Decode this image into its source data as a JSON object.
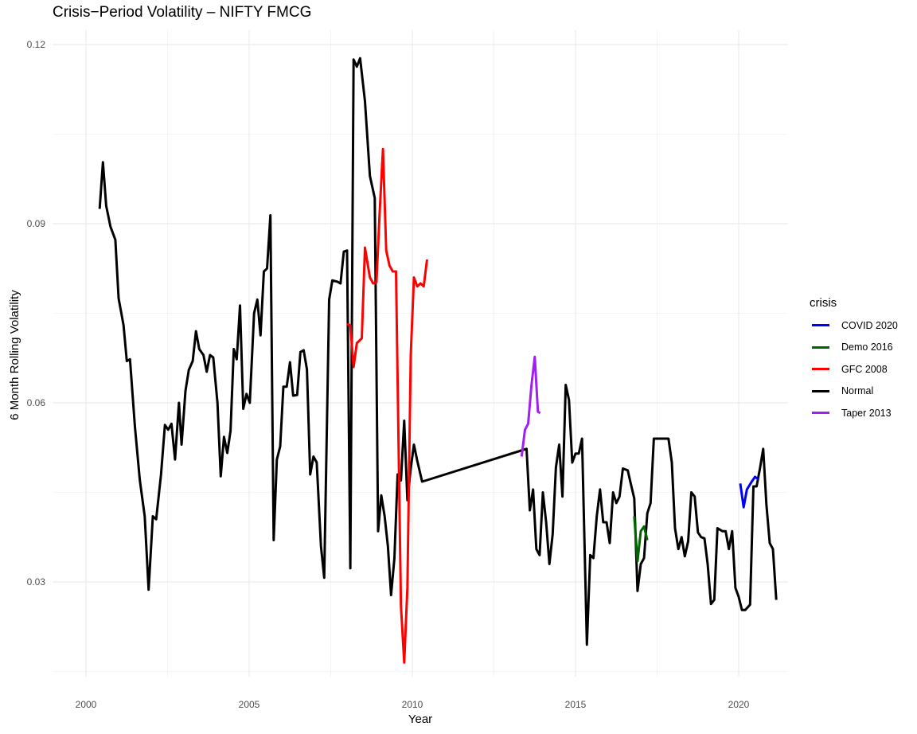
{
  "chart_data": {
    "type": "line",
    "title": "Crisis−Period Volatility – NIFTY FMCG",
    "xlabel": "Year",
    "ylabel": "6 Month Rolling Volatility",
    "xlim": [
      1999.0,
      2021.6
    ],
    "ylim": [
      0.0135,
      0.1225
    ],
    "x_ticks": [
      2000,
      2005,
      2010,
      2015,
      2020
    ],
    "x_tick_labels": [
      "2000",
      "2005",
      "2010",
      "2015",
      "2020"
    ],
    "y_ticks": [
      0.03,
      0.06,
      0.09,
      0.12
    ],
    "y_tick_labels": [
      "0.03",
      "0.06",
      "0.09",
      "0.12"
    ],
    "grid": true,
    "legend_title": "crisis",
    "legend_position": "right",
    "series": [
      {
        "name": "COVID 2020",
        "color": "#0000ff",
        "points": [
          [
            2020.05,
            0.0465
          ],
          [
            2020.15,
            0.0425
          ],
          [
            2020.25,
            0.0455
          ],
          [
            2020.4,
            0.0468
          ],
          [
            2020.5,
            0.0476
          ],
          [
            2020.6,
            0.0472
          ]
        ]
      },
      {
        "name": "Demo 2016",
        "color": "#006400",
        "points": [
          [
            2016.8,
            0.041
          ],
          [
            2016.9,
            0.0335
          ],
          [
            2017.0,
            0.0385
          ],
          [
            2017.1,
            0.0393
          ],
          [
            2017.2,
            0.037
          ]
        ]
      },
      {
        "name": "GFC 2008",
        "color": "#ff0000",
        "points": [
          [
            2008.0,
            0.0732
          ],
          [
            2008.1,
            0.073
          ],
          [
            2008.2,
            0.066
          ],
          [
            2008.3,
            0.07
          ],
          [
            2008.45,
            0.0708
          ],
          [
            2008.55,
            0.086
          ],
          [
            2008.7,
            0.081
          ],
          [
            2008.8,
            0.08
          ],
          [
            2008.9,
            0.0802
          ],
          [
            2009.0,
            0.092
          ],
          [
            2009.1,
            0.1025
          ],
          [
            2009.2,
            0.0855
          ],
          [
            2009.3,
            0.083
          ],
          [
            2009.4,
            0.082
          ],
          [
            2009.5,
            0.082
          ],
          [
            2009.65,
            0.026
          ],
          [
            2009.75,
            0.0165
          ],
          [
            2009.85,
            0.029
          ],
          [
            2009.95,
            0.068
          ],
          [
            2010.05,
            0.081
          ],
          [
            2010.15,
            0.0795
          ],
          [
            2010.25,
            0.08
          ],
          [
            2010.35,
            0.0795
          ],
          [
            2010.45,
            0.084
          ]
        ]
      },
      {
        "name": "Normal",
        "color": "#000000",
        "points": [
          [
            2000.42,
            0.0925
          ],
          [
            2000.52,
            0.1003
          ],
          [
            2000.62,
            0.093
          ],
          [
            2000.75,
            0.0895
          ],
          [
            2000.9,
            0.0873
          ],
          [
            2001.0,
            0.0775
          ],
          [
            2001.15,
            0.073
          ],
          [
            2001.25,
            0.067
          ],
          [
            2001.35,
            0.0673
          ],
          [
            2001.5,
            0.056
          ],
          [
            2001.65,
            0.047
          ],
          [
            2001.8,
            0.041
          ],
          [
            2001.92,
            0.0287
          ],
          [
            2002.05,
            0.041
          ],
          [
            2002.15,
            0.0405
          ],
          [
            2002.3,
            0.048
          ],
          [
            2002.42,
            0.0563
          ],
          [
            2002.52,
            0.0555
          ],
          [
            2002.62,
            0.0565
          ],
          [
            2002.73,
            0.0505
          ],
          [
            2002.85,
            0.06
          ],
          [
            2002.93,
            0.053
          ],
          [
            2003.05,
            0.062
          ],
          [
            2003.15,
            0.0655
          ],
          [
            2003.27,
            0.067
          ],
          [
            2003.37,
            0.072
          ],
          [
            2003.47,
            0.069
          ],
          [
            2003.6,
            0.068
          ],
          [
            2003.7,
            0.0652
          ],
          [
            2003.8,
            0.068
          ],
          [
            2003.9,
            0.0676
          ],
          [
            2004.03,
            0.06
          ],
          [
            2004.13,
            0.0477
          ],
          [
            2004.23,
            0.0543
          ],
          [
            2004.33,
            0.0516
          ],
          [
            2004.43,
            0.0553
          ],
          [
            2004.53,
            0.069
          ],
          [
            2004.62,
            0.0673
          ],
          [
            2004.72,
            0.0763
          ],
          [
            2004.82,
            0.059
          ],
          [
            2004.92,
            0.0615
          ],
          [
            2005.02,
            0.06
          ],
          [
            2005.15,
            0.075
          ],
          [
            2005.25,
            0.0773
          ],
          [
            2005.35,
            0.0713
          ],
          [
            2005.45,
            0.082
          ],
          [
            2005.55,
            0.0825
          ],
          [
            2005.65,
            0.0914
          ],
          [
            2005.75,
            0.037
          ],
          [
            2005.85,
            0.0505
          ],
          [
            2005.95,
            0.0527
          ],
          [
            2006.05,
            0.0627
          ],
          [
            2006.15,
            0.0627
          ],
          [
            2006.25,
            0.0668
          ],
          [
            2006.35,
            0.0612
          ],
          [
            2006.47,
            0.0613
          ],
          [
            2006.57,
            0.0685
          ],
          [
            2006.67,
            0.0688
          ],
          [
            2006.77,
            0.0656
          ],
          [
            2006.87,
            0.048
          ],
          [
            2006.97,
            0.051
          ],
          [
            2007.07,
            0.05
          ],
          [
            2007.2,
            0.036
          ],
          [
            2007.3,
            0.0307
          ],
          [
            2007.45,
            0.0773
          ],
          [
            2007.55,
            0.0805
          ],
          [
            2007.7,
            0.0803
          ],
          [
            2007.8,
            0.08
          ],
          [
            2007.9,
            0.0853
          ],
          [
            2008.0,
            0.0855
          ],
          [
            2008.1,
            0.0323
          ],
          [
            2008.2,
            0.1175
          ],
          [
            2008.3,
            0.1163
          ],
          [
            2008.4,
            0.1177
          ],
          [
            2008.55,
            0.1105
          ],
          [
            2008.7,
            0.098
          ],
          [
            2008.85,
            0.0943
          ],
          [
            2008.95,
            0.0385
          ],
          [
            2009.05,
            0.0445
          ],
          [
            2009.15,
            0.041
          ],
          [
            2009.25,
            0.036
          ],
          [
            2009.35,
            0.0278
          ],
          [
            2009.45,
            0.034
          ],
          [
            2009.55,
            0.048
          ],
          [
            2009.65,
            0.047
          ],
          [
            2009.75,
            0.057
          ],
          [
            2009.85,
            0.0437
          ],
          [
            2009.95,
            0.049
          ],
          [
            2010.05,
            0.053
          ],
          [
            2010.15,
            0.0503
          ],
          [
            2010.3,
            0.0468
          ],
          [
            2010.42,
            0.047
          ],
          [
            2013.5,
            0.0523
          ],
          [
            2013.6,
            0.042
          ],
          [
            2013.7,
            0.0455
          ],
          [
            2013.8,
            0.0355
          ],
          [
            2013.9,
            0.0345
          ],
          [
            2014.0,
            0.045
          ],
          [
            2014.1,
            0.04
          ],
          [
            2014.2,
            0.033
          ],
          [
            2014.3,
            0.038
          ],
          [
            2014.4,
            0.0492
          ],
          [
            2014.5,
            0.053
          ],
          [
            2014.6,
            0.0443
          ],
          [
            2014.7,
            0.063
          ],
          [
            2014.8,
            0.0605
          ],
          [
            2014.9,
            0.05
          ],
          [
            2015.0,
            0.0515
          ],
          [
            2015.1,
            0.0515
          ],
          [
            2015.2,
            0.054
          ],
          [
            2015.35,
            0.0195
          ],
          [
            2015.45,
            0.0345
          ],
          [
            2015.55,
            0.034
          ],
          [
            2015.65,
            0.041
          ],
          [
            2015.75,
            0.0455
          ],
          [
            2015.85,
            0.04
          ],
          [
            2015.95,
            0.04
          ],
          [
            2016.05,
            0.0365
          ],
          [
            2016.15,
            0.045
          ],
          [
            2016.25,
            0.0432
          ],
          [
            2016.35,
            0.0443
          ],
          [
            2016.45,
            0.049
          ],
          [
            2016.6,
            0.0487
          ],
          [
            2016.7,
            0.0463
          ],
          [
            2016.8,
            0.044
          ],
          [
            2016.9,
            0.0285
          ],
          [
            2017.0,
            0.033
          ],
          [
            2017.1,
            0.034
          ],
          [
            2017.2,
            0.0415
          ],
          [
            2017.3,
            0.0432
          ],
          [
            2017.4,
            0.054
          ],
          [
            2017.55,
            0.054
          ],
          [
            2017.7,
            0.054
          ],
          [
            2017.85,
            0.054
          ],
          [
            2017.95,
            0.05
          ],
          [
            2018.05,
            0.039
          ],
          [
            2018.15,
            0.0355
          ],
          [
            2018.25,
            0.0375
          ],
          [
            2018.35,
            0.0343
          ],
          [
            2018.45,
            0.0368
          ],
          [
            2018.55,
            0.045
          ],
          [
            2018.65,
            0.0443
          ],
          [
            2018.75,
            0.0383
          ],
          [
            2018.85,
            0.0375
          ],
          [
            2018.95,
            0.0373
          ],
          [
            2019.05,
            0.033
          ],
          [
            2019.15,
            0.0263
          ],
          [
            2019.25,
            0.027
          ],
          [
            2019.35,
            0.039
          ],
          [
            2019.5,
            0.0385
          ],
          [
            2019.6,
            0.0385
          ],
          [
            2019.7,
            0.0355
          ],
          [
            2019.8,
            0.0385
          ],
          [
            2019.9,
            0.029
          ],
          [
            2020.0,
            0.0275
          ],
          [
            2020.1,
            0.0253
          ],
          [
            2020.2,
            0.0253
          ],
          [
            2020.35,
            0.0262
          ],
          [
            2020.45,
            0.046
          ],
          [
            2020.55,
            0.046
          ],
          [
            2020.65,
            0.049
          ],
          [
            2020.75,
            0.0523
          ],
          [
            2020.85,
            0.043
          ],
          [
            2020.95,
            0.0365
          ],
          [
            2021.05,
            0.0355
          ],
          [
            2021.15,
            0.027
          ]
        ]
      },
      {
        "name": "Taper 2013",
        "color": "#a020f0",
        "points": [
          [
            2013.35,
            0.051
          ],
          [
            2013.45,
            0.0555
          ],
          [
            2013.55,
            0.0565
          ],
          [
            2013.65,
            0.063
          ],
          [
            2013.75,
            0.0677
          ],
          [
            2013.85,
            0.0585
          ],
          [
            2013.92,
            0.0583
          ]
        ]
      }
    ]
  },
  "legend": {
    "title": "crisis",
    "items": [
      {
        "label": "COVID 2020",
        "color": "#0000ff"
      },
      {
        "label": "Demo 2016",
        "color": "#006400"
      },
      {
        "label": "GFC 2008",
        "color": "#ff0000"
      },
      {
        "label": "Normal",
        "color": "#000000"
      },
      {
        "label": "Taper 2013",
        "color": "#a020f0"
      }
    ]
  }
}
